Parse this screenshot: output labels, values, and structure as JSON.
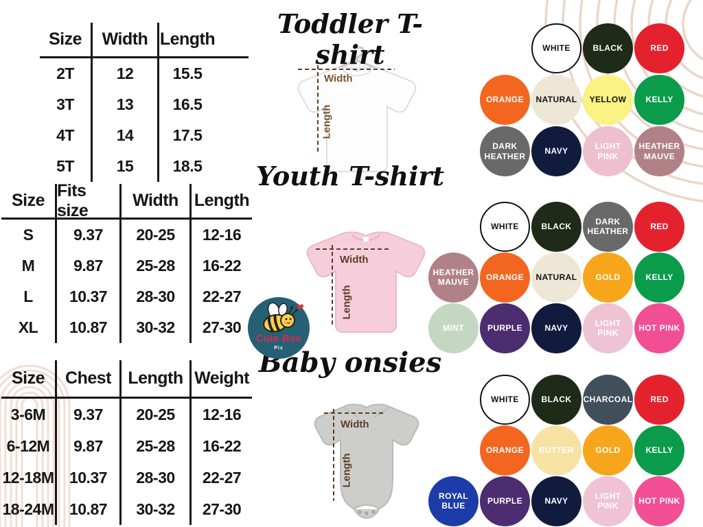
{
  "toddler": {
    "title": "Toddler T-shirt",
    "table": {
      "headers": [
        "Size",
        "Width",
        "Length"
      ],
      "rows": [
        [
          "2T",
          "12",
          "15.5"
        ],
        [
          "3T",
          "13",
          "16.5"
        ],
        [
          "4T",
          "14",
          "17.5"
        ],
        [
          "5T",
          "15",
          "18.5"
        ]
      ]
    },
    "diagram": {
      "width_label": "Width",
      "length_label": "Length"
    },
    "colors": [
      {
        "name": "WHITE",
        "hex": "#ffffff",
        "text": "#111111",
        "border": "#111111"
      },
      {
        "name": "BLACK",
        "hex": "#1f2b18",
        "text": "#ffffff"
      },
      {
        "name": "RED",
        "hex": "#e3222e",
        "text": "#ffffff"
      },
      {
        "name": "ORANGE",
        "hex": "#f3661f",
        "text": "#ffffff"
      },
      {
        "name": "NATURAL",
        "hex": "#eee7d6",
        "text": "#111111"
      },
      {
        "name": "YELLOW",
        "hex": "#faf282",
        "text": "#111111"
      },
      {
        "name": "KELLY",
        "hex": "#0a9b4b",
        "text": "#ffffff"
      },
      {
        "name": "DARK HEATHER",
        "hex": "#696969",
        "text": "#ffffff"
      },
      {
        "name": "NAVY",
        "hex": "#101b3d",
        "text": "#ffffff"
      },
      {
        "name": "LIGHT PINK",
        "hex": "#eec0cf",
        "text": "#ffffff"
      },
      {
        "name": "HEATHER MAUVE",
        "hex": "#b08287",
        "text": "#ffffff"
      }
    ]
  },
  "youth": {
    "title": "Youth T-shirt",
    "table": {
      "headers": [
        "Size",
        "Fits size",
        "Width",
        "Length"
      ],
      "rows": [
        [
          "S",
          "9.37",
          "20-25",
          "12-16"
        ],
        [
          "M",
          "9.87",
          "25-28",
          "16-22"
        ],
        [
          "L",
          "10.37",
          "28-30",
          "22-27"
        ],
        [
          "XL",
          "10.87",
          "30-32",
          "27-30"
        ]
      ]
    },
    "diagram": {
      "width_label": "Width",
      "length_label": "Length"
    },
    "colors": [
      {
        "name": "WHITE",
        "hex": "#ffffff",
        "text": "#111111",
        "border": "#111111"
      },
      {
        "name": "BLACK",
        "hex": "#1f2b18",
        "text": "#ffffff"
      },
      {
        "name": "DARK HEATHER",
        "hex": "#696969",
        "text": "#ffffff"
      },
      {
        "name": "RED",
        "hex": "#e3222e",
        "text": "#ffffff"
      },
      {
        "name": "HEATHER MAUVE",
        "hex": "#b08287",
        "text": "#ffffff"
      },
      {
        "name": "ORANGE",
        "hex": "#f3661f",
        "text": "#ffffff"
      },
      {
        "name": "NATURAL",
        "hex": "#eee7d6",
        "text": "#111111"
      },
      {
        "name": "GOLD",
        "hex": "#f7a61b",
        "text": "#ffffff"
      },
      {
        "name": "KELLY",
        "hex": "#0a9b4b",
        "text": "#ffffff"
      },
      {
        "name": "MINT",
        "hex": "#c4d7c2",
        "text": "#ffffff"
      },
      {
        "name": "PURPLE",
        "hex": "#4b2d70",
        "text": "#ffffff"
      },
      {
        "name": "NAVY",
        "hex": "#101b3d",
        "text": "#ffffff"
      },
      {
        "name": "LIGHT PINK",
        "hex": "#efc3d3",
        "text": "#ffffff"
      },
      {
        "name": "HOT PINK",
        "hex": "#f14e94",
        "text": "#ffffff"
      }
    ]
  },
  "baby": {
    "title": "Baby onsies",
    "table": {
      "headers": [
        "Size",
        "Chest",
        "Length",
        "Weight"
      ],
      "rows": [
        [
          "3-6M",
          "9.37",
          "20-25",
          "12-16"
        ],
        [
          "6-12M",
          "9.87",
          "25-28",
          "16-22"
        ],
        [
          "12-18M",
          "10.37",
          "28-30",
          "22-27"
        ],
        [
          "18-24M",
          "10.87",
          "30-32",
          "27-30"
        ]
      ]
    },
    "diagram": {
      "width_label": "Width",
      "length_label": "Length"
    },
    "colors": [
      {
        "name": "WHITE",
        "hex": "#ffffff",
        "text": "#111111",
        "border": "#111111"
      },
      {
        "name": "BLACK",
        "hex": "#1f2b18",
        "text": "#ffffff"
      },
      {
        "name": "CHARCOAL",
        "hex": "#414e5c",
        "text": "#ffffff"
      },
      {
        "name": "RED",
        "hex": "#e3222e",
        "text": "#ffffff"
      },
      {
        "name": "ORANGE",
        "hex": "#f3661f",
        "text": "#ffffff"
      },
      {
        "name": "BUTTER",
        "hex": "#f6e3a3",
        "text": "#ffffff"
      },
      {
        "name": "GOLD",
        "hex": "#f7a61b",
        "text": "#ffffff"
      },
      {
        "name": "KELLY",
        "hex": "#0a9b4b",
        "text": "#ffffff"
      },
      {
        "name": "ROYAL BLUE",
        "hex": "#1c3ca8",
        "text": "#ffffff"
      },
      {
        "name": "PURPLE",
        "hex": "#4b2d70",
        "text": "#ffffff"
      },
      {
        "name": "NAVY",
        "hex": "#101b3d",
        "text": "#ffffff"
      },
      {
        "name": "LIGHT PINK",
        "hex": "#efc3d3",
        "text": "#ffffff"
      },
      {
        "name": "HOT PINK",
        "hex": "#f14e94",
        "text": "#ffffff"
      }
    ]
  },
  "logo": {
    "name": "Cute Bee",
    "sub": "Pix"
  },
  "accents": {
    "dash_line": "#5b3d24",
    "arc_top_right": "#ead6c8",
    "arc_bottom_left": "#f2ddd6",
    "logo_bg": "#266074"
  }
}
